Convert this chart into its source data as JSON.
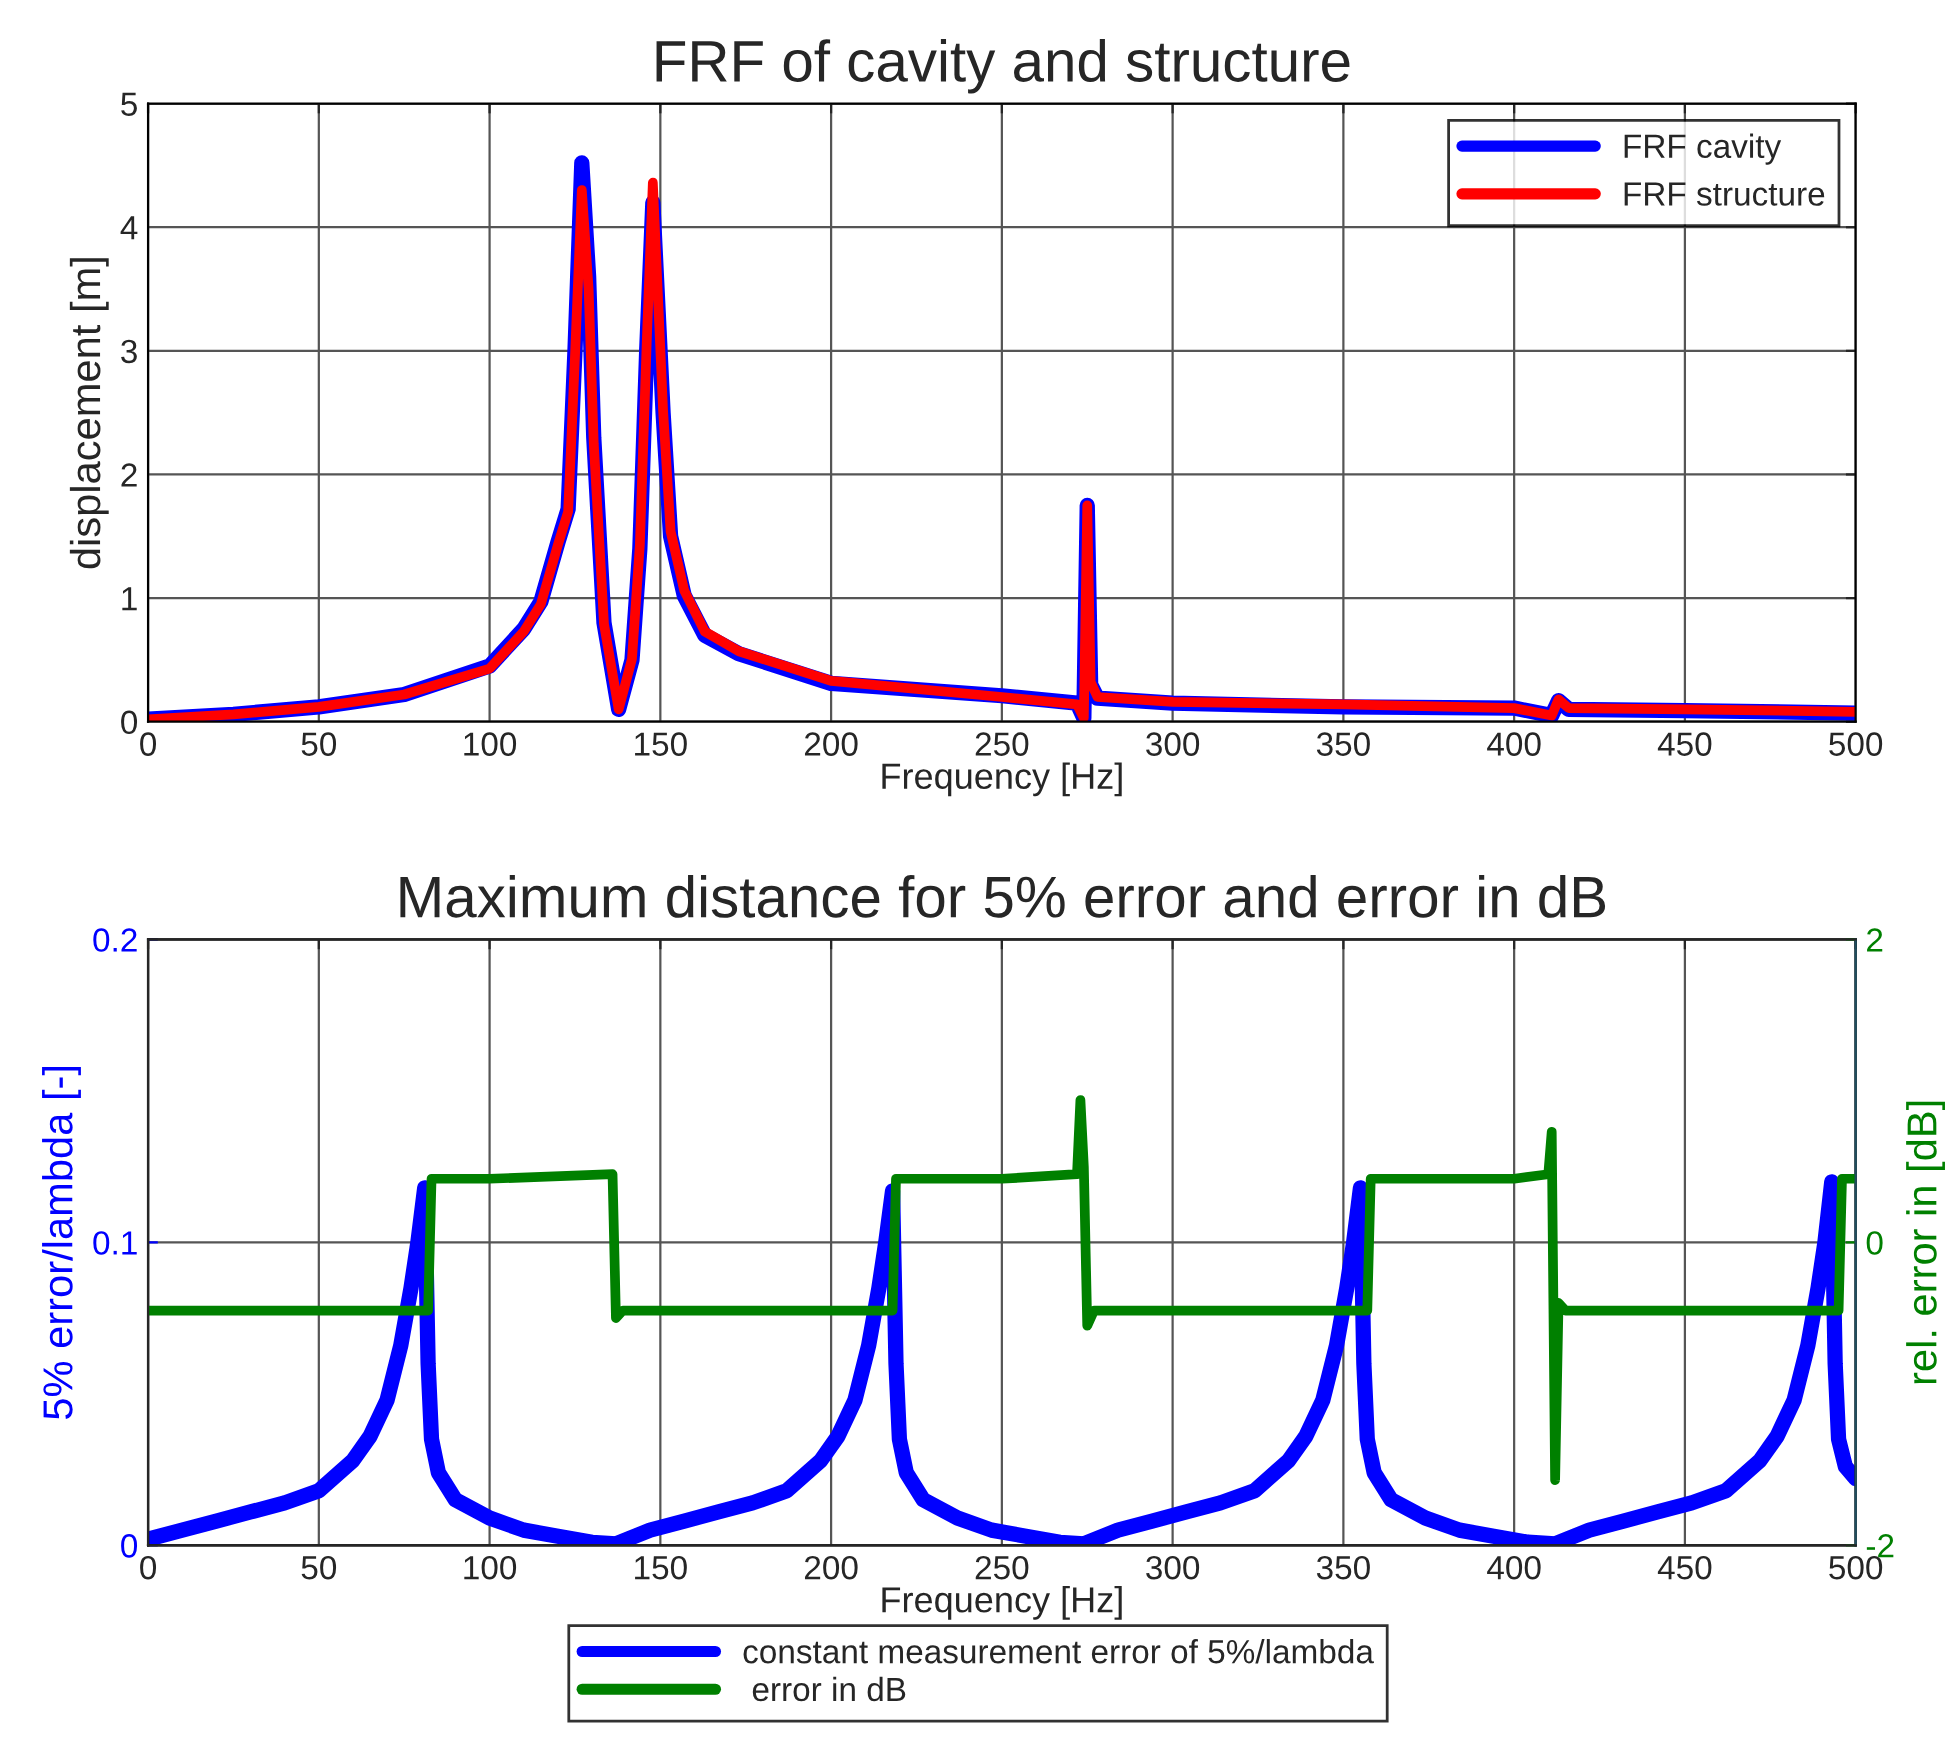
{
  "chart_data": [
    {
      "type": "line",
      "title": "FRF of cavity and structure",
      "xlabel": "Frequency [Hz]",
      "ylabel": "displacement [m]",
      "xlim": [
        0,
        500
      ],
      "xticks": [
        0,
        50,
        100,
        150,
        200,
        250,
        300,
        350,
        400,
        450,
        500
      ],
      "ylim": [
        0,
        5
      ],
      "yticks": [
        0,
        1,
        2,
        3,
        4,
        5
      ],
      "grid": true,
      "legend": "top right",
      "line_style": "solid",
      "series": [
        {
          "name": "FRF cavity",
          "color": "#0000ff",
          "x": [
            0,
            25,
            50,
            75,
            100,
            110,
            115,
            120,
            123,
            125,
            127,
            129,
            130.5,
            133.5,
            137.8,
            141.7,
            144,
            146,
            147.8,
            150.8,
            153,
            157,
            163,
            173,
            200,
            250,
            272,
            274,
            275,
            276,
            278,
            300,
            350,
            400,
            411,
            413,
            416,
            450,
            500
          ],
          "values": [
            0.02,
            0.06,
            0.12,
            0.22,
            0.45,
            0.75,
            0.97,
            1.45,
            1.72,
            3.0,
            4.52,
            3.6,
            2.3,
            0.8,
            0.1,
            0.5,
            1.4,
            3.0,
            4.2,
            2.5,
            1.5,
            1.02,
            0.7,
            0.55,
            0.31,
            0.21,
            0.15,
            0.03,
            1.75,
            0.3,
            0.19,
            0.15,
            0.12,
            0.11,
            0.05,
            0.17,
            0.1,
            0.09,
            0.07
          ]
        },
        {
          "name": "FRF structure",
          "color": "#ff0000",
          "x": [
            0,
            25,
            50,
            75,
            100,
            110,
            115,
            120,
            123,
            125,
            127,
            129,
            130.5,
            133.5,
            137.8,
            141.7,
            144,
            146,
            147.8,
            150.8,
            153,
            157,
            163,
            173,
            200,
            250,
            272,
            274,
            275,
            276,
            278,
            300,
            350,
            400,
            411,
            413,
            416,
            450,
            500
          ],
          "values": [
            0.02,
            0.06,
            0.12,
            0.22,
            0.43,
            0.73,
            0.95,
            1.43,
            1.7,
            2.95,
            4.3,
            3.5,
            2.25,
            0.79,
            0.1,
            0.51,
            1.43,
            3.06,
            4.36,
            2.52,
            1.54,
            1.06,
            0.73,
            0.57,
            0.33,
            0.2,
            0.14,
            0.03,
            1.75,
            0.32,
            0.2,
            0.16,
            0.14,
            0.11,
            0.05,
            0.18,
            0.11,
            0.1,
            0.08
          ]
        }
      ]
    },
    {
      "type": "line",
      "title": "Maximum distance for 5% error and error in dB",
      "xlabel": "Frequency [Hz]",
      "ylabel": "5% error/lambda [-]",
      "y2label": "rel. error in [dB]",
      "xlim": [
        0,
        500
      ],
      "xticks": [
        0,
        50,
        100,
        150,
        200,
        250,
        300,
        350,
        400,
        450,
        500
      ],
      "ylim": [
        0,
        0.2
      ],
      "yticks": [
        0,
        0.1,
        0.2
      ],
      "y2lim": [
        -2,
        2
      ],
      "y2ticks": [
        -2,
        0,
        2
      ],
      "grid": true,
      "legend": "bottom",
      "line_style": "solid",
      "series": [
        {
          "name": "constant measurement error of 5%/lambda",
          "color": "#0000ff",
          "axis": "y",
          "x": [
            0,
            10,
            20,
            30,
            40,
            50,
            60,
            65,
            70,
            74,
            77,
            79,
            81,
            82,
            83,
            85,
            90,
            100,
            110,
            120,
            130,
            137,
            147,
            157,
            167,
            177,
            187,
            197,
            202,
            207,
            211,
            214,
            216,
            218,
            219,
            220,
            222,
            227,
            237,
            247,
            257,
            267,
            274,
            284,
            294,
            304,
            314,
            324,
            334,
            339,
            344,
            348,
            351,
            353,
            355,
            356,
            357,
            359,
            364,
            374,
            384,
            394,
            404,
            412,
            422,
            432,
            442,
            452,
            462,
            472,
            477,
            482,
            486,
            489,
            491,
            493,
            494,
            495,
            497,
            500
          ],
          "values": [
            0.002,
            0.005,
            0.008,
            0.011,
            0.014,
            0.018,
            0.028,
            0.036,
            0.048,
            0.066,
            0.085,
            0.1,
            0.118,
            0.06,
            0.035,
            0.024,
            0.015,
            0.009,
            0.005,
            0.003,
            0.001,
            0.0005,
            0.005,
            0.008,
            0.011,
            0.014,
            0.018,
            0.028,
            0.036,
            0.048,
            0.066,
            0.085,
            0.1,
            0.117,
            0.06,
            0.035,
            0.024,
            0.015,
            0.009,
            0.005,
            0.003,
            0.001,
            0.0005,
            0.005,
            0.008,
            0.011,
            0.014,
            0.018,
            0.028,
            0.036,
            0.048,
            0.066,
            0.085,
            0.1,
            0.118,
            0.06,
            0.035,
            0.024,
            0.015,
            0.009,
            0.005,
            0.003,
            0.001,
            0.0005,
            0.005,
            0.008,
            0.011,
            0.014,
            0.018,
            0.028,
            0.036,
            0.048,
            0.066,
            0.085,
            0.1,
            0.12,
            0.06,
            0.035,
            0.026,
            0.022
          ]
        },
        {
          "name": " error in dB",
          "color": "#008000",
          "axis": "y2",
          "x": [
            0,
            82,
            83,
            100,
            136,
            137,
            139,
            150,
            218,
            219,
            250,
            272,
            273,
            274,
            275,
            277,
            300,
            357,
            358,
            400,
            410,
            411,
            412,
            413,
            415,
            450,
            495,
            496,
            500
          ],
          "values": [
            -0.45,
            -0.45,
            0.42,
            0.42,
            0.45,
            -0.5,
            -0.45,
            -0.45,
            -0.45,
            0.42,
            0.42,
            0.45,
            0.94,
            0.5,
            -0.55,
            -0.45,
            -0.45,
            -0.45,
            0.42,
            0.42,
            0.45,
            0.73,
            -1.57,
            -0.4,
            -0.45,
            -0.45,
            -0.45,
            0.42,
            0.42
          ]
        }
      ]
    }
  ]
}
